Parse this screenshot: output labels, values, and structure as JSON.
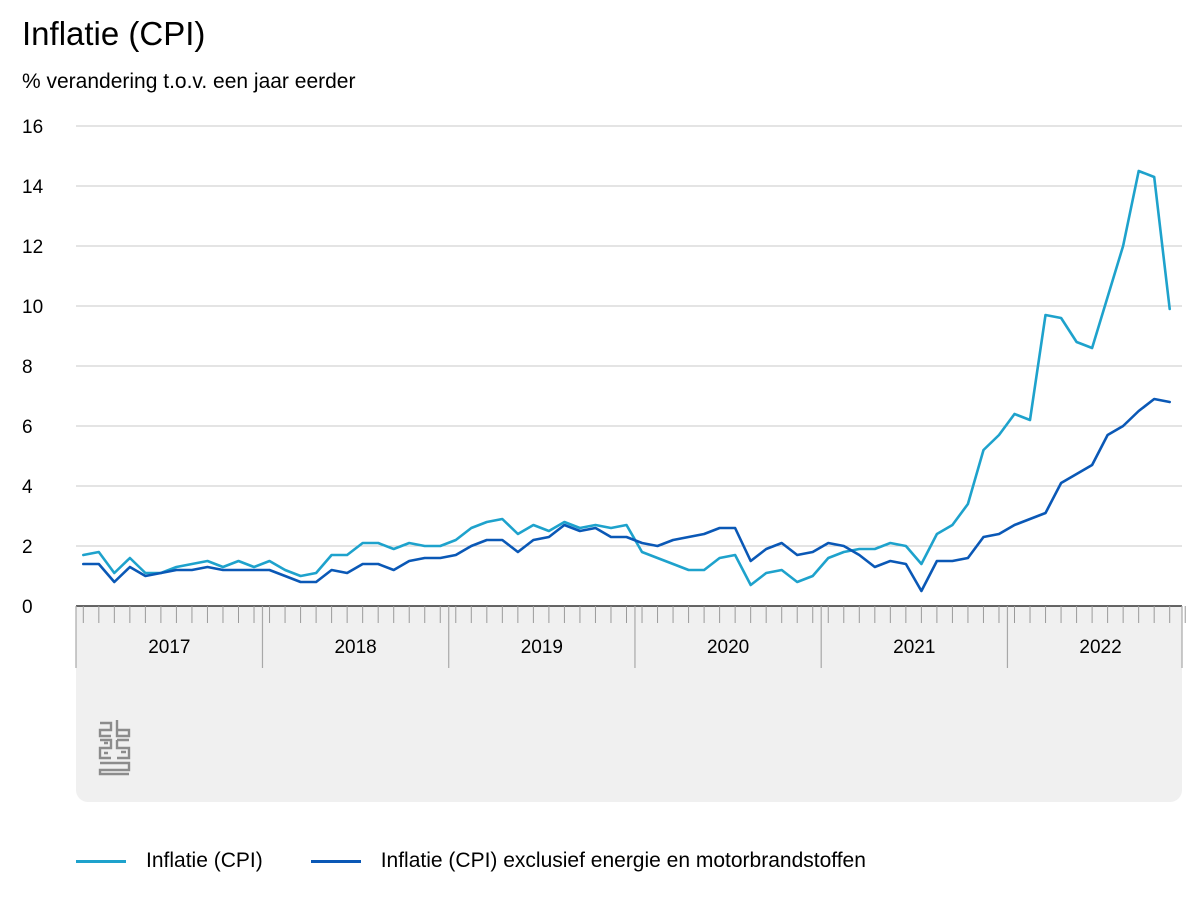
{
  "chart_data": {
    "type": "line",
    "title": "Inflatie (CPI)",
    "subtitle": "% verandering t.o.v. een jaar eerder",
    "ylim": [
      0,
      16
    ],
    "yticks": [
      0,
      2,
      4,
      6,
      8,
      10,
      12,
      14,
      16
    ],
    "xlim": [
      "2017-01",
      "2022-12"
    ],
    "year_labels": [
      "2017",
      "2018",
      "2019",
      "2020",
      "2021",
      "2022"
    ],
    "grid": "horizontal",
    "legend_position": "bottom",
    "x": [
      "2017-01",
      "2017-02",
      "2017-03",
      "2017-04",
      "2017-05",
      "2017-06",
      "2017-07",
      "2017-08",
      "2017-09",
      "2017-10",
      "2017-11",
      "2017-12",
      "2018-01",
      "2018-02",
      "2018-03",
      "2018-04",
      "2018-05",
      "2018-06",
      "2018-07",
      "2018-08",
      "2018-09",
      "2018-10",
      "2018-11",
      "2018-12",
      "2019-01",
      "2019-02",
      "2019-03",
      "2019-04",
      "2019-05",
      "2019-06",
      "2019-07",
      "2019-08",
      "2019-09",
      "2019-10",
      "2019-11",
      "2019-12",
      "2020-01",
      "2020-02",
      "2020-03",
      "2020-04",
      "2020-05",
      "2020-06",
      "2020-07",
      "2020-08",
      "2020-09",
      "2020-10",
      "2020-11",
      "2020-12",
      "2021-01",
      "2021-02",
      "2021-03",
      "2021-04",
      "2021-05",
      "2021-06",
      "2021-07",
      "2021-08",
      "2021-09",
      "2021-10",
      "2021-11",
      "2021-12",
      "2022-01",
      "2022-02",
      "2022-03",
      "2022-04",
      "2022-05",
      "2022-06",
      "2022-07",
      "2022-08",
      "2022-09",
      "2022-10",
      "2022-11",
      "2022-12"
    ],
    "series": [
      {
        "name": "Inflatie (CPI)",
        "color": "#1ea2cc",
        "values": [
          1.7,
          1.8,
          1.1,
          1.6,
          1.1,
          1.1,
          1.3,
          1.4,
          1.5,
          1.3,
          1.5,
          1.3,
          1.5,
          1.2,
          1.0,
          1.1,
          1.7,
          1.7,
          2.1,
          2.1,
          1.9,
          2.1,
          2.0,
          2.0,
          2.2,
          2.6,
          2.8,
          2.9,
          2.4,
          2.7,
          2.5,
          2.8,
          2.6,
          2.7,
          2.6,
          2.7,
          1.8,
          1.6,
          1.4,
          1.2,
          1.2,
          1.6,
          1.7,
          0.7,
          1.1,
          1.2,
          0.8,
          1.0,
          1.6,
          1.8,
          1.9,
          1.9,
          2.1,
          2.0,
          1.4,
          2.4,
          2.7,
          3.4,
          5.2,
          5.7,
          6.4,
          6.2,
          9.7,
          9.6,
          8.8,
          8.6,
          10.3,
          12.0,
          14.5,
          14.3,
          9.9,
          null
        ]
      },
      {
        "name": "Inflatie (CPI) exclusief energie en motorbrandstoffen",
        "color": "#0a58b6",
        "values": [
          1.4,
          1.4,
          0.8,
          1.3,
          1.0,
          1.1,
          1.2,
          1.2,
          1.3,
          1.2,
          1.2,
          1.2,
          1.2,
          1.0,
          0.8,
          0.8,
          1.2,
          1.1,
          1.4,
          1.4,
          1.2,
          1.5,
          1.6,
          1.6,
          1.7,
          2.0,
          2.2,
          2.2,
          1.8,
          2.2,
          2.3,
          2.7,
          2.5,
          2.6,
          2.3,
          2.3,
          2.1,
          2.0,
          2.2,
          2.3,
          2.4,
          2.6,
          2.6,
          1.5,
          1.9,
          2.1,
          1.7,
          1.8,
          2.1,
          2.0,
          1.7,
          1.3,
          1.5,
          1.4,
          0.5,
          1.5,
          1.5,
          1.6,
          2.3,
          2.4,
          2.7,
          2.9,
          3.1,
          4.1,
          4.4,
          4.7,
          5.7,
          6.0,
          6.5,
          6.9,
          6.8,
          null
        ]
      }
    ]
  }
}
